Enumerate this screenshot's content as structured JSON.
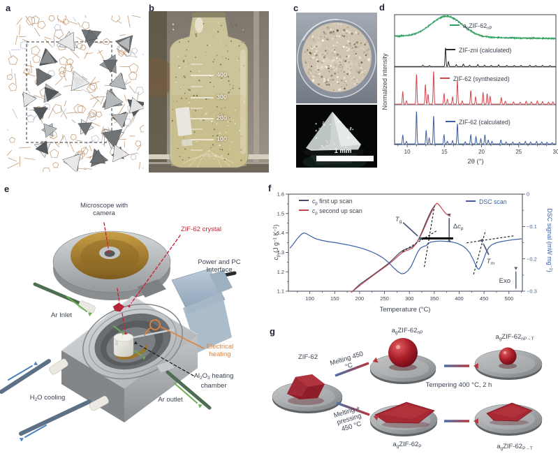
{
  "panel_letters": {
    "a": "a",
    "b": "b",
    "c": "c",
    "d": "d",
    "e": "e",
    "f": "f",
    "g": "g"
  },
  "colors": {
    "text": "#3a4350",
    "xrd_amorphous": "#2f9e5f",
    "xrd_zni": "#2b2b2b",
    "xrd_synth": "#d5474d",
    "xrd_calc": "#3a5fa5",
    "cp_first": "#454a63",
    "cp_second": "#c4444b",
    "dsc": "#3a5fa5",
    "annotation_arrow": "#4d5d7a",
    "red_dashed": "#cc2233",
    "orange": "#e0823c",
    "argon_green": "#6cb052",
    "water_blue": "#4b80bd",
    "wireframe": "#b98a5e",
    "nitrogen": "#aab3cc",
    "tetrahedra": [
      "#4f5254",
      "#6a6e70",
      "#8a8e90",
      "#b9bcbe",
      "#e8e9ea"
    ]
  },
  "panel_b": {
    "graduations": [
      "400",
      "300",
      "200",
      "100"
    ]
  },
  "panel_c": {
    "scale_bar": "1 mm"
  },
  "panel_e": {
    "labels": {
      "microscope": "Microscope with camera",
      "crystal": "ZIF-62 crystal",
      "power": "Power and PC Interface",
      "ar_inlet": "Ar Inlet",
      "heating": "Electrical heating",
      "chamber": "Al_{2}O_{3} heating chamber",
      "cooling": "H_{2}O cooling",
      "ar_outlet": "Ar outlet"
    }
  },
  "panel_g": {
    "labels": {
      "start": "ZIF-62",
      "melt": "Melting 450 °C",
      "meltpress": "Melting + pressing 450 °C",
      "temper": "Tempering 400 °C, 2 h",
      "ag_np": "a_{g}ZIF-62_{nP}",
      "ag_npt": "a_{g}ZIF-62_{nP→T}",
      "ag_p": "a_{g}ZIF-62_{P}",
      "ag_pt": "a_{g}ZIF-62_{P→T}"
    }
  },
  "chart_data": [
    {
      "type": "line",
      "name": "pxrd-patterns",
      "title": "",
      "xlabel": "2θ (°)",
      "ylabel": "Normalized intensity",
      "x_range": [
        8.3,
        30
      ],
      "x_ticks": [
        10,
        15,
        20,
        25,
        30
      ],
      "grid": false,
      "legend_position": "right-in-band",
      "series": [
        {
          "name": "a_{g}ZIF-62_{nP}",
          "color": "#2f9e5f",
          "style": "amorphous",
          "hump_center": 15.3,
          "hump_width": 3.0,
          "hump_height": 0.78,
          "noise": 0.05
        },
        {
          "name": "ZIF-zni (calculated)",
          "color": "#2b2b2b",
          "style": "peaks",
          "peaks": [
            [
              12.1,
              0.07
            ],
            [
              13.0,
              0.05
            ],
            [
              15.15,
              1.0
            ],
            [
              15.55,
              0.26
            ],
            [
              16.6,
              0.1
            ],
            [
              17.55,
              0.13
            ],
            [
              18.4,
              0.07
            ],
            [
              19.5,
              0.11
            ],
            [
              20.4,
              0.07
            ],
            [
              21.3,
              0.06
            ],
            [
              22.3,
              0.09
            ],
            [
              23.4,
              0.06
            ],
            [
              24.4,
              0.05
            ],
            [
              25.3,
              0.06
            ],
            [
              26.5,
              0.07
            ],
            [
              27.3,
              0.05
            ],
            [
              28.2,
              0.06
            ],
            [
              29.2,
              0.05
            ]
          ]
        },
        {
          "name": "ZIF-62 (synthesized)",
          "color": "#d5474d",
          "style": "peaks",
          "peaks": [
            [
              9.4,
              0.38
            ],
            [
              9.9,
              0.1
            ],
            [
              11.25,
              0.92
            ],
            [
              12.45,
              0.6
            ],
            [
              12.8,
              0.3
            ],
            [
              13.55,
              1.0
            ],
            [
              14.95,
              0.32
            ],
            [
              15.4,
              0.15
            ],
            [
              16.1,
              0.22
            ],
            [
              16.75,
              0.72
            ],
            [
              17.4,
              0.1
            ],
            [
              18.55,
              0.42
            ],
            [
              19.2,
              0.22
            ],
            [
              20.2,
              0.35
            ],
            [
              20.75,
              0.32
            ],
            [
              21.15,
              0.24
            ],
            [
              22.65,
              0.2
            ],
            [
              23.2,
              0.09
            ],
            [
              24.3,
              0.07
            ],
            [
              25.2,
              0.06
            ],
            [
              26.0,
              0.09
            ],
            [
              26.7,
              0.07
            ],
            [
              27.5,
              0.1
            ],
            [
              28.2,
              0.08
            ],
            [
              29.0,
              0.06
            ],
            [
              29.6,
              0.07
            ]
          ]
        },
        {
          "name": "ZIF-62 (calculated)",
          "color": "#3a5fa5",
          "style": "peaks",
          "peaks": [
            [
              9.4,
              0.27
            ],
            [
              9.9,
              0.08
            ],
            [
              11.25,
              1.0
            ],
            [
              12.55,
              0.42
            ],
            [
              12.95,
              0.18
            ],
            [
              13.55,
              0.85
            ],
            [
              14.95,
              0.28
            ],
            [
              15.4,
              0.08
            ],
            [
              16.1,
              0.1
            ],
            [
              16.75,
              0.62
            ],
            [
              17.8,
              0.07
            ],
            [
              18.55,
              0.28
            ],
            [
              19.25,
              0.22
            ],
            [
              19.9,
              0.16
            ],
            [
              20.45,
              0.28
            ],
            [
              20.9,
              0.12
            ],
            [
              21.4,
              0.08
            ],
            [
              22.6,
              0.12
            ],
            [
              23.3,
              0.06
            ],
            [
              24.2,
              0.06
            ],
            [
              25.1,
              0.05
            ],
            [
              25.9,
              0.08
            ],
            [
              26.6,
              0.06
            ],
            [
              27.4,
              0.08
            ],
            [
              28.1,
              0.06
            ],
            [
              28.8,
              0.05
            ],
            [
              29.5,
              0.04
            ]
          ]
        }
      ]
    },
    {
      "type": "line",
      "name": "calorimetry",
      "title": "",
      "xlabel": "Temperature (°C)",
      "ylabel_left": "*c*_{p} (J g^{−1} K^{−1})",
      "ylabel_right": "DSC signal (mW mg^{−1})",
      "x_range": [
        57,
        527
      ],
      "x_ticks": [
        100,
        150,
        200,
        250,
        300,
        350,
        400,
        450,
        500
      ],
      "y_left_range": [
        1.1,
        1.6
      ],
      "y_left_ticks": [
        1.6,
        1.5,
        1.4,
        1.3,
        1.2,
        1.1
      ],
      "y_right_range": [
        -0.3,
        0
      ],
      "y_right_ticks": [
        "0",
        "−0.1",
        "−0.2",
        "−0.3"
      ],
      "grid": false,
      "series": [
        {
          "name": "*c*_{p} first up scan",
          "color": "#454a63",
          "axis": "left",
          "points": [
            [
              185,
              1.098
            ],
            [
              200,
              1.135
            ],
            [
              215,
              1.162
            ],
            [
              230,
              1.19
            ],
            [
              245,
              1.218
            ],
            [
              258,
              1.243
            ],
            [
              270,
              1.272
            ],
            [
              280,
              1.297
            ],
            [
              288,
              1.312
            ],
            [
              295,
              1.319
            ],
            [
              302,
              1.324
            ],
            [
              308,
              1.332
            ],
            [
              314,
              1.348
            ],
            [
              320,
              1.375
            ],
            [
              326,
              1.41
            ],
            [
              332,
              1.447
            ],
            [
              338,
              1.483
            ],
            [
              344,
              1.515
            ],
            [
              349,
              1.535
            ]
          ]
        },
        {
          "name": "*c*_{p} second up scan",
          "color": "#c4444b",
          "axis": "left",
          "points": [
            [
              183,
              1.093
            ],
            [
              195,
              1.118
            ],
            [
              207,
              1.142
            ],
            [
              219,
              1.165
            ],
            [
              231,
              1.188
            ],
            [
              243,
              1.21
            ],
            [
              255,
              1.232
            ],
            [
              266,
              1.255
            ],
            [
              276,
              1.278
            ],
            [
              285,
              1.298
            ],
            [
              292,
              1.308
            ],
            [
              299,
              1.314
            ],
            [
              306,
              1.322
            ],
            [
              313,
              1.343
            ],
            [
              319,
              1.368
            ],
            [
              325,
              1.398
            ],
            [
              331,
              1.432
            ],
            [
              337,
              1.468
            ],
            [
              343,
              1.5
            ],
            [
              348,
              1.526
            ],
            [
              352,
              1.545
            ],
            [
              355,
              1.553
            ],
            [
              359,
              1.547
            ],
            [
              364,
              1.53
            ],
            [
              369,
              1.512
            ],
            [
              374,
              1.498
            ],
            [
              379,
              1.49
            ],
            [
              383,
              1.487
            ]
          ]
        },
        {
          "name": "DSC scan",
          "color": "#3a5fa5",
          "axis": "right",
          "points": [
            [
              60,
              -0.167
            ],
            [
              67,
              -0.154
            ],
            [
              75,
              -0.137
            ],
            [
              83,
              -0.124
            ],
            [
              88,
              -0.12
            ],
            [
              94,
              -0.123
            ],
            [
              102,
              -0.13
            ],
            [
              112,
              -0.138
            ],
            [
              124,
              -0.143
            ],
            [
              138,
              -0.147
            ],
            [
              152,
              -0.15
            ],
            [
              166,
              -0.154
            ],
            [
              180,
              -0.158
            ],
            [
              194,
              -0.163
            ],
            [
              208,
              -0.169
            ],
            [
              222,
              -0.177
            ],
            [
              235,
              -0.186
            ],
            [
              247,
              -0.197
            ],
            [
              258,
              -0.211
            ],
            [
              268,
              -0.227
            ],
            [
              277,
              -0.24
            ],
            [
              284,
              -0.246
            ],
            [
              290,
              -0.245
            ],
            [
              297,
              -0.237
            ],
            [
              304,
              -0.222
            ],
            [
              311,
              -0.198
            ],
            [
              317,
              -0.178
            ],
            [
              322,
              -0.167
            ],
            [
              328,
              -0.162
            ],
            [
              334,
              -0.159
            ],
            [
              338,
              -0.152
            ],
            [
              344,
              -0.148
            ],
            [
              352,
              -0.146
            ],
            [
              362,
              -0.145
            ],
            [
              374,
              -0.146
            ],
            [
              386,
              -0.148
            ],
            [
              396,
              -0.152
            ],
            [
              406,
              -0.159
            ],
            [
              414,
              -0.168
            ],
            [
              421,
              -0.181
            ],
            [
              428,
              -0.201
            ],
            [
              433,
              -0.218
            ],
            [
              437,
              -0.23
            ],
            [
              440,
              -0.232
            ],
            [
              444,
              -0.222
            ],
            [
              449,
              -0.202
            ],
            [
              454,
              -0.181
            ],
            [
              459,
              -0.166
            ],
            [
              465,
              -0.157
            ],
            [
              473,
              -0.151
            ],
            [
              483,
              -0.147
            ],
            [
              495,
              -0.144
            ],
            [
              508,
              -0.141
            ],
            [
              520,
              -0.139
            ],
            [
              526,
              -0.138
            ]
          ]
        }
      ],
      "annotations": {
        "tg": {
          "text": "*T*_{g}",
          "at": [
            278,
            1.468
          ],
          "anchor": "middle",
          "arrow": [
            [
              288,
              1.452
            ],
            [
              316,
              1.386
            ]
          ]
        },
        "dcp": {
          "text": "Δ*c*_{p}",
          "at": [
            385,
            1.43
          ],
          "anchor": "start",
          "x": 380,
          "y1": 1.372,
          "y2": 1.482
        },
        "plateau": [
          [
            322,
            1.372
          ],
          [
            388,
            1.372
          ]
        ],
        "tm": {
          "text": "*T*_{m}",
          "at": [
            463,
            1.252
          ],
          "anchor": "middle",
          "arrow": [
            [
              459,
              1.29
            ],
            [
              449,
              1.342
            ]
          ]
        },
        "exo": {
          "text": "Exo",
          "at": [
            506,
            1.152
          ],
          "anchor": "end",
          "x": 514,
          "y1": 1.115,
          "y2": 1.2
        },
        "tangents": [
          [
            [
              286,
              1.304
            ],
            [
              354,
              1.41
            ]
          ],
          [
            [
              330,
              1.225
            ],
            [
              351,
              1.548
            ]
          ],
          [
            [
              415,
              1.349
            ],
            [
              512,
              1.386
            ]
          ],
          [
            [
              429,
              1.187
            ],
            [
              453,
              1.413
            ]
          ]
        ]
      }
    }
  ]
}
